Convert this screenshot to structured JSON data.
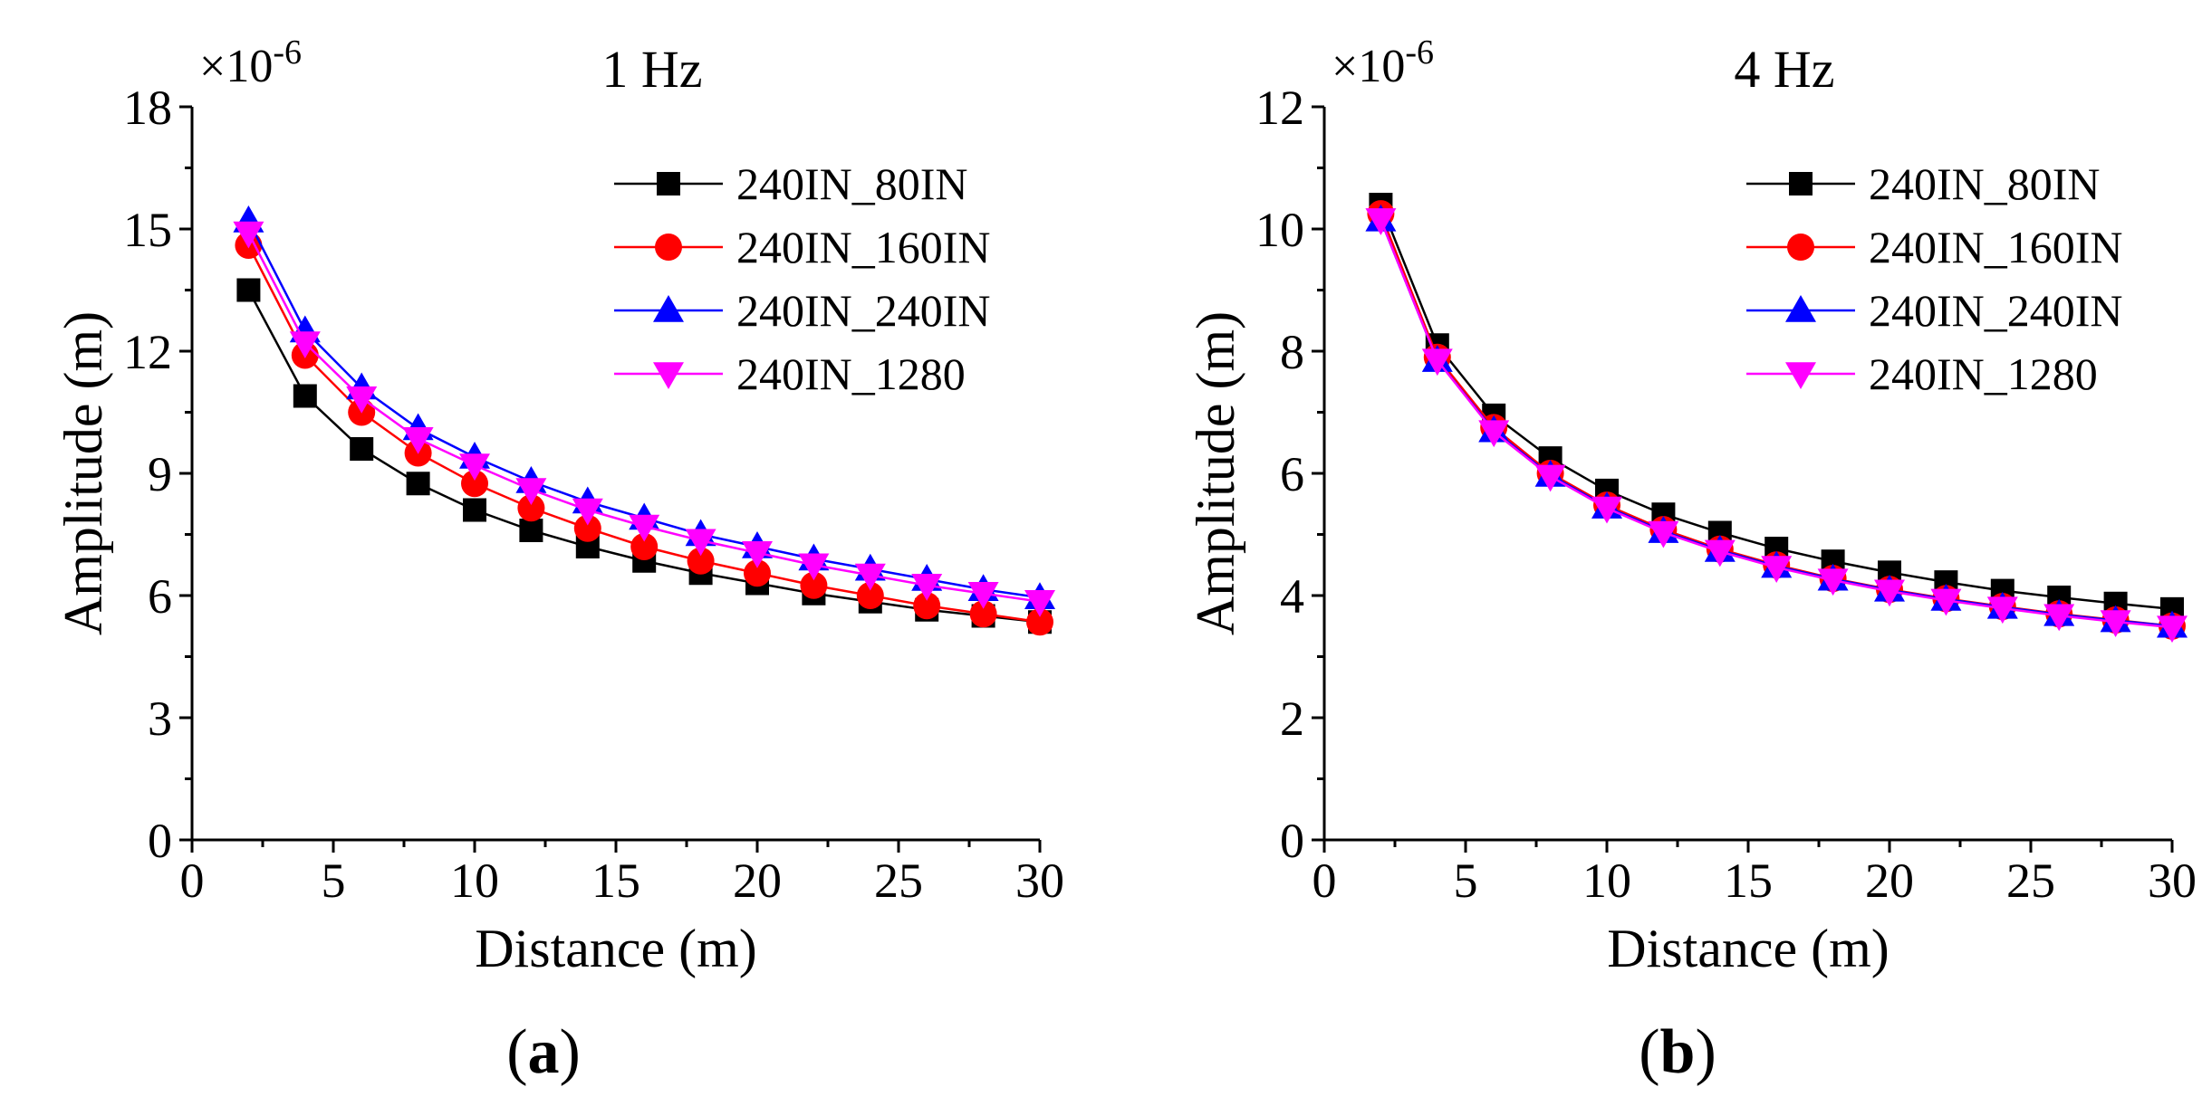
{
  "figure": {
    "panel_a_label": {
      "open": "(",
      "letter": "a",
      "close": ")"
    },
    "panel_b_label": {
      "open": "(",
      "letter": "b",
      "close": ")"
    }
  },
  "chart_data": [
    {
      "type": "line",
      "title": "1 Hz",
      "xlabel": "Distance (m)",
      "ylabel": "Amplitude (m)",
      "y_multiplier_base": "×10",
      "y_multiplier_exp": "-6",
      "xlim": [
        0,
        30
      ],
      "ylim": [
        0,
        18
      ],
      "xticks": [
        0,
        5,
        10,
        15,
        20,
        25,
        30
      ],
      "yticks": [
        0,
        3,
        6,
        9,
        12,
        15,
        18
      ],
      "legend_position": "top-right",
      "x": [
        2,
        4,
        6,
        8,
        10,
        12,
        14,
        16,
        18,
        20,
        22,
        24,
        26,
        28,
        30
      ],
      "series": [
        {
          "name": "240IN_80IN",
          "color": "#000000",
          "marker": "square",
          "values": [
            13.5,
            10.9,
            9.6,
            8.75,
            8.1,
            7.6,
            7.2,
            6.85,
            6.55,
            6.3,
            6.05,
            5.85,
            5.65,
            5.5,
            5.35
          ]
        },
        {
          "name": "240IN_160IN",
          "color": "#ff0000",
          "marker": "circle",
          "values": [
            14.6,
            11.9,
            10.5,
            9.5,
            8.75,
            8.15,
            7.65,
            7.2,
            6.85,
            6.55,
            6.25,
            6.0,
            5.75,
            5.55,
            5.35
          ]
        },
        {
          "name": "240IN_240IN",
          "color": "#0000ff",
          "marker": "triangle-up",
          "values": [
            15.2,
            12.5,
            11.1,
            10.1,
            9.4,
            8.8,
            8.3,
            7.9,
            7.5,
            7.2,
            6.9,
            6.65,
            6.4,
            6.15,
            5.95
          ]
        },
        {
          "name": "240IN_1280",
          "color": "#ff00ff",
          "marker": "triangle-down",
          "values": [
            14.9,
            12.2,
            10.85,
            9.85,
            9.2,
            8.6,
            8.1,
            7.7,
            7.35,
            7.05,
            6.75,
            6.5,
            6.25,
            6.05,
            5.85
          ]
        }
      ]
    },
    {
      "type": "line",
      "title": "4 Hz",
      "xlabel": "Distance (m)",
      "ylabel": "Amplitude (m)",
      "y_multiplier_base": "×10",
      "y_multiplier_exp": "-6",
      "xlim": [
        0,
        30
      ],
      "ylim": [
        0,
        12
      ],
      "xticks": [
        0,
        5,
        10,
        15,
        20,
        25,
        30
      ],
      "yticks": [
        0,
        2,
        4,
        6,
        8,
        10,
        12
      ],
      "legend_position": "top-right",
      "x": [
        2,
        4,
        6,
        8,
        10,
        12,
        14,
        16,
        18,
        20,
        22,
        24,
        26,
        28,
        30
      ],
      "series": [
        {
          "name": "240IN_80IN",
          "color": "#000000",
          "marker": "square",
          "values": [
            10.4,
            8.1,
            6.95,
            6.25,
            5.72,
            5.33,
            5.03,
            4.77,
            4.56,
            4.38,
            4.22,
            4.08,
            3.97,
            3.87,
            3.78
          ]
        },
        {
          "name": "240IN_160IN",
          "color": "#ff0000",
          "marker": "circle",
          "values": [
            10.25,
            7.9,
            6.75,
            6.0,
            5.48,
            5.08,
            4.76,
            4.5,
            4.28,
            4.1,
            3.95,
            3.82,
            3.7,
            3.6,
            3.5
          ]
        },
        {
          "name": "240IN_240IN",
          "color": "#0000ff",
          "marker": "triangle-up",
          "values": [
            10.15,
            7.85,
            6.7,
            5.97,
            5.45,
            5.05,
            4.74,
            4.48,
            4.27,
            4.09,
            3.94,
            3.81,
            3.69,
            3.59,
            3.5
          ]
        },
        {
          "name": "240IN_1280",
          "color": "#ff00ff",
          "marker": "triangle-down",
          "values": [
            10.15,
            7.85,
            6.68,
            5.95,
            5.43,
            5.03,
            4.72,
            4.46,
            4.25,
            4.07,
            3.92,
            3.79,
            3.67,
            3.57,
            3.48
          ]
        }
      ]
    }
  ]
}
